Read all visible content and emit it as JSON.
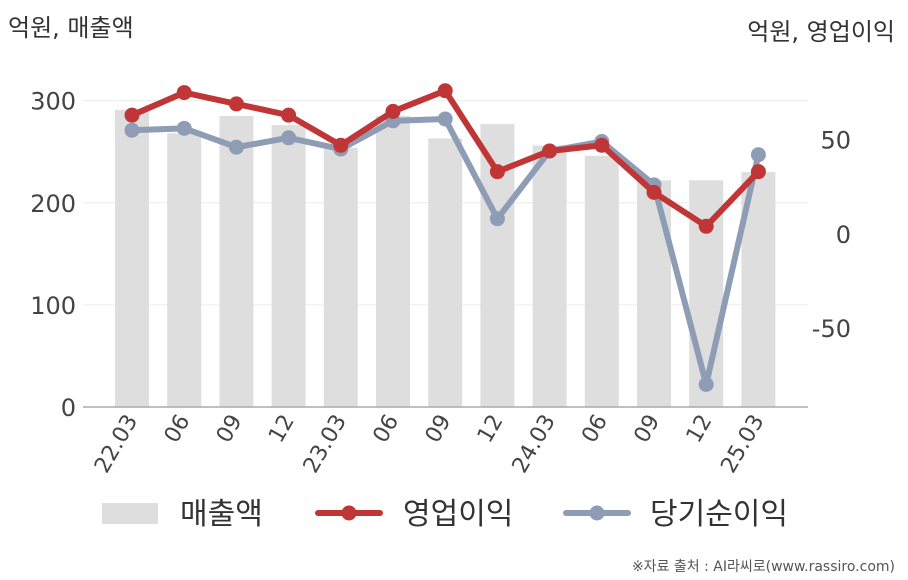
{
  "chart_data": {
    "type": "bar",
    "left_unit": "억원, 매출액",
    "right_unit": "억원, 영업이익",
    "categories": [
      "22.03",
      "06",
      "09",
      "12",
      "23.03",
      "06",
      "09",
      "12",
      "24.03",
      "06",
      "09",
      "12",
      "25.03"
    ],
    "series": [
      {
        "name": "매출액",
        "type": "bar",
        "axis": "left",
        "color": "#dedede",
        "values": [
          291,
          268,
          285,
          276,
          254,
          285,
          263,
          277,
          256,
          246,
          222,
          222,
          230
        ]
      },
      {
        "name": "영업이익",
        "type": "line",
        "axis": "right",
        "color": "#c03535",
        "values": [
          63,
          75,
          69,
          63,
          47,
          65,
          76,
          33,
          44,
          47,
          22,
          4,
          33
        ]
      },
      {
        "name": "당기순이익",
        "type": "line",
        "axis": "right",
        "color": "#8f9cb5",
        "values": [
          55,
          56,
          46,
          51,
          45,
          60,
          61,
          8,
          44,
          49,
          26,
          -80,
          42
        ]
      }
    ],
    "left_axis": {
      "min": 0,
      "max": 330,
      "ticks": [
        0,
        100,
        200,
        300
      ]
    },
    "right_axis": {
      "min": -92,
      "max": 87,
      "ticks": [
        50,
        0,
        -50
      ]
    },
    "legend_position": "bottom",
    "grid": true
  },
  "source": "※자료 출처 : AI라씨로(www.rassiro.com)"
}
